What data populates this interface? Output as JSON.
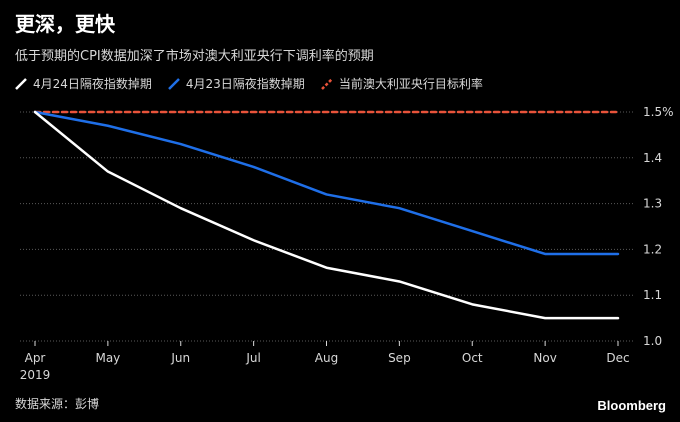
{
  "title": "更深，更快",
  "subtitle": "低于预期的CPI数据加深了市场对澳大利亚央行下调利率的预期",
  "source": "数据来源：彭博",
  "brand": "Bloomberg",
  "colors": {
    "background": "#000000",
    "series_apr24": "#ffffff",
    "series_apr23": "#1f6fe8",
    "target_rate": "#e8533a",
    "grid": "#5a5a5a",
    "text": "#d8d8d8"
  },
  "chart_data": {
    "type": "line",
    "categories": [
      "Apr",
      "May",
      "Jun",
      "Jul",
      "Aug",
      "Sep",
      "Oct",
      "Nov",
      "Dec"
    ],
    "x_sublabel": "2019",
    "series": [
      {
        "name": "4月24日隔夜指数掉期",
        "values": [
          1.5,
          1.37,
          1.29,
          1.22,
          1.16,
          1.13,
          1.08,
          1.05,
          1.05
        ]
      },
      {
        "name": "4月23日隔夜指数掉期",
        "values": [
          1.5,
          1.47,
          1.43,
          1.38,
          1.32,
          1.29,
          1.24,
          1.19,
          1.19
        ]
      },
      {
        "name": "当前澳大利亚央行目标利率",
        "values": [
          1.5,
          1.5,
          1.5,
          1.5,
          1.5,
          1.5,
          1.5,
          1.5,
          1.5
        ]
      }
    ],
    "y_ticks": [
      "1.5%",
      "1.4",
      "1.3",
      "1.2",
      "1.1",
      "1.0"
    ],
    "ylim": [
      1.0,
      1.5
    ],
    "grid": true,
    "legend_position": "top-left"
  }
}
